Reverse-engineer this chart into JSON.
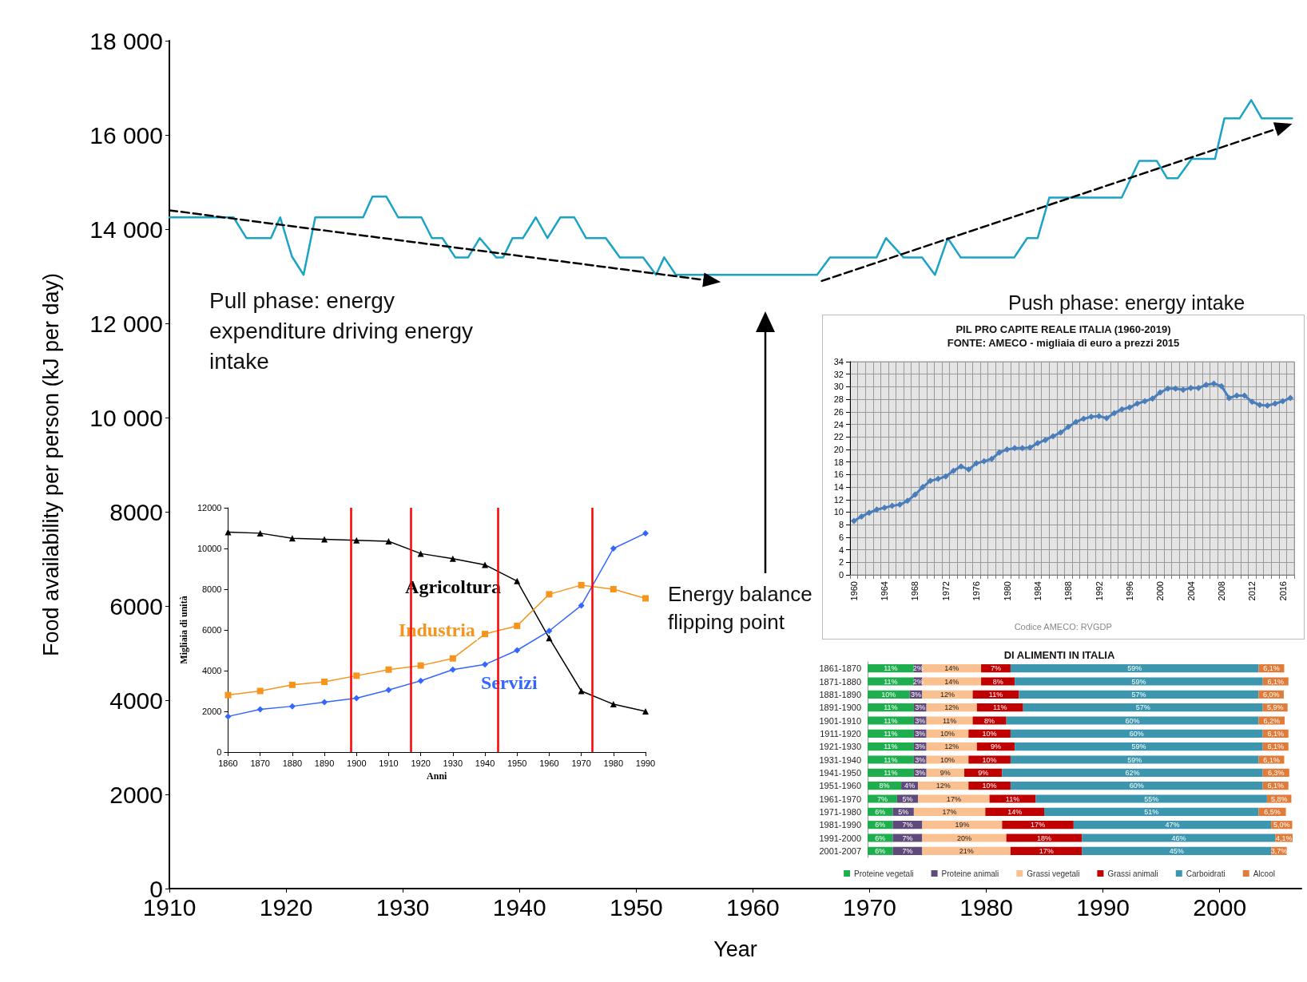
{
  "chart_data": [
    {
      "type": "line",
      "xlabel": "Year",
      "ylabel": "Food availability per person (kJ per day)",
      "x": [
        1910,
        1915.5,
        1916.6,
        1918.7,
        1919.5,
        1920.5,
        1921.5,
        1922.5,
        1926.6,
        1927.4,
        1928.6,
        1929.6,
        1931.6,
        1932.5,
        1933.4,
        1934.5,
        1935.6,
        1936.6,
        1938,
        1938.6,
        1939.4,
        1940.3,
        1941.4,
        1942.4,
        1943.5,
        1944.7,
        1945.7,
        1947.4,
        1948.6,
        1950.6,
        1951.7,
        1952.4,
        1953.4,
        1965.5,
        1966.6,
        1970.6,
        1971.4,
        1972.9,
        1974.5,
        1975.6,
        1976.7,
        1977.8,
        1982.4,
        1983.5,
        1984.4,
        1985.4,
        1991.6,
        1993.1,
        1994.6,
        1995.5,
        1996.4,
        1997.6,
        1999.6,
        2000.4,
        2001.7,
        2002.7,
        2003.6,
        2006.2
      ],
      "xlim": [
        1910,
        2007
      ],
      "xticks": [
        1910,
        1920,
        1930,
        1940,
        1950,
        1960,
        1970,
        1980,
        1990,
        2000
      ],
      "ylim": [
        0,
        18000
      ],
      "yticks": [
        0,
        2000,
        4000,
        6000,
        8000,
        {
          "value": 10000,
          "label": "10 000"
        },
        {
          "value": 12000,
          "label": "12 000"
        },
        {
          "value": 14000,
          "label": "14 000"
        },
        {
          "value": 16000,
          "label": "16 000"
        },
        {
          "value": 18000,
          "label": "18 000"
        }
      ],
      "series": [
        {
          "color": "#1ba3c6",
          "values": [
            14250,
            14250,
            13810,
            13810,
            14250,
            13420,
            13030,
            14250,
            14250,
            14690,
            14690,
            14250,
            14250,
            13810,
            13810,
            13400,
            13400,
            13810,
            13400,
            13400,
            13810,
            13810,
            14250,
            13810,
            14250,
            14250,
            13810,
            13810,
            13400,
            13400,
            13030,
            13400,
            13030,
            13030,
            13400,
            13400,
            13810,
            13400,
            13400,
            13030,
            13810,
            13400,
            13400,
            13810,
            13810,
            14670,
            14670,
            15450,
            15450,
            15080,
            15080,
            15490,
            15490,
            16350,
            16350,
            16740,
            16350,
            16350
          ]
        },
        {
          "type": "line",
          "x": [
            1910,
            1956.5
          ],
          "values": [
            14400,
            12900
          ],
          "color": "#000000",
          "line_style": "dashed"
        },
        {
          "type": "line",
          "x": [
            1965.9,
            2005.5
          ],
          "values": [
            12900,
            16180
          ],
          "color": "#000000",
          "line_style": "dashed"
        }
      ],
      "annotations": [
        "Pull phase: energy expenditure driving energy intake",
        "Push phase: energy intake",
        "Energy balance flipping point"
      ],
      "grid": false,
      "legend": false
    },
    {
      "type": "line",
      "xlabel": "Anni",
      "ylabel": "Migliaia di unità",
      "x": [
        1860,
        1870,
        1880,
        1890,
        1900,
        1910,
        1920,
        1930,
        1940,
        1950,
        1960,
        1970,
        1980,
        1990
      ],
      "xlim": [
        1860,
        1990
      ],
      "xticks": [
        1860,
        1870,
        1880,
        1890,
        1900,
        1910,
        1920,
        1930,
        1940,
        1950,
        1960,
        1970,
        1980,
        1990
      ],
      "ylim": [
        0,
        12000
      ],
      "yticks": [
        0,
        2000,
        4000,
        6000,
        8000,
        10000,
        12000
      ],
      "series": [
        {
          "name": "Agricoltura",
          "color": "#000000",
          "marker": "triangle",
          "values": [
            10800,
            10750,
            10500,
            10450,
            10400,
            10350,
            9750,
            9500,
            9200,
            8400,
            5600,
            3000,
            2350,
            2000
          ]
        },
        {
          "name": "Industria",
          "color": "#f7941d",
          "marker": "square",
          "values": [
            2800,
            3000,
            3300,
            3450,
            3750,
            4050,
            4250,
            4600,
            5800,
            6200,
            7750,
            8200,
            8000,
            7550
          ]
        },
        {
          "name": "Servizi",
          "color": "#3366ff",
          "marker": "diamond",
          "values": [
            1750,
            2100,
            2250,
            2450,
            2650,
            3050,
            3500,
            4050,
            4300,
            5000,
            5950,
            7200,
            10000,
            10750
          ]
        }
      ],
      "ref_lines": [
        {
          "axis": "x",
          "value": 1898.2,
          "color": "#ff0000"
        },
        {
          "axis": "x",
          "value": 1916.8,
          "color": "#ff0000"
        },
        {
          "axis": "x",
          "value": 1944,
          "color": "#ff0000"
        },
        {
          "axis": "x",
          "value": 1973.3,
          "color": "#ff0000"
        }
      ],
      "grid": false,
      "legend": false
    },
    {
      "type": "line",
      "title": "PIL PRO CAPITE REALE ITALIA (1960-2019)",
      "subtitle": "FONTE: AMECO - migliaia di euro a prezzi 2015",
      "categories": [
        "1960",
        null,
        null,
        null,
        "1964",
        null,
        null,
        null,
        "1968",
        null,
        null,
        null,
        "1972",
        null,
        null,
        null,
        "1976",
        null,
        null,
        null,
        "1980",
        null,
        null,
        null,
        "1984",
        null,
        null,
        null,
        "1988",
        null,
        null,
        null,
        "1992",
        null,
        null,
        null,
        "1996",
        null,
        null,
        null,
        "2000",
        null,
        null,
        null,
        "2004",
        null,
        null,
        null,
        "2008",
        null,
        null,
        null,
        "2012",
        null,
        null,
        null,
        "2016",
        null
      ],
      "ylim": [
        0,
        34
      ],
      "yticks": [
        0,
        2,
        4,
        6,
        8,
        10,
        12,
        14,
        16,
        18,
        20,
        22,
        24,
        26,
        28,
        30,
        32,
        34
      ],
      "series": [
        {
          "color": "#4a7ebb",
          "values": [
            8.6,
            9.3,
            9.9,
            10.4,
            10.7,
            11.0,
            11.2,
            11.8,
            12.8,
            14.0,
            15.0,
            15.3,
            15.7,
            16.6,
            17.3,
            16.8,
            17.8,
            18.1,
            18.5,
            19.5,
            20.0,
            20.2,
            20.2,
            20.3,
            21.0,
            21.5,
            22.1,
            22.7,
            23.6,
            24.4,
            24.9,
            25.2,
            25.3,
            25.0,
            25.8,
            26.4,
            26.7,
            27.3,
            27.7,
            28.1,
            29.1,
            29.7,
            29.7,
            29.5,
            29.8,
            29.8,
            30.3,
            30.5,
            30.1,
            28.2,
            28.6,
            28.6,
            27.6,
            27.1,
            27.0,
            27.3,
            27.7,
            28.2
          ]
        }
      ],
      "marker": "diamond",
      "grid": true,
      "legend": false,
      "annotations": [
        "Codice AMECO: RVGDP"
      ]
    },
    {
      "type": "bar",
      "title": "DI ALIMENTI IN ITALIA",
      "orientation": "horizontal",
      "stacked": true,
      "legend": "bottom",
      "categories": [
        "1861-1870",
        "1871-1880",
        "1881-1890",
        "1891-1900",
        "1901-1910",
        "1911-1920",
        "1921-1930",
        "1931-1940",
        "1941-1950",
        "1951-1960",
        "1961-1970",
        "1971-1980",
        "1981-1990",
        "1991-2000",
        "2001-2007"
      ],
      "series": [
        {
          "name": "Proteine vegetali",
          "color": "#1fae4e",
          "values": [
            11,
            11,
            10,
            11,
            11,
            11,
            11,
            11,
            11,
            8,
            7,
            6,
            6,
            6,
            6
          ],
          "value_labels": [
            "11%",
            "11%",
            "10%",
            "11%",
            "11%",
            "11%",
            "11%",
            "11%",
            "11%",
            "8%",
            "7%",
            "6%",
            "6%",
            "6%",
            "6%"
          ]
        },
        {
          "name": "Proteine animali",
          "color": "#604a7b",
          "values": [
            2,
            2,
            3,
            3,
            3,
            3,
            3,
            3,
            3,
            4,
            5,
            5,
            7,
            7,
            7
          ],
          "value_labels": [
            "2%",
            "2%",
            "3%",
            "3%",
            "3%",
            "3%",
            "3%",
            "3%",
            "3%",
            "4%",
            "5%",
            "5%",
            "7%",
            "7%",
            "7%"
          ]
        },
        {
          "name": "Grassi vegetali",
          "color": "#fac090",
          "values": [
            14,
            14,
            12,
            12,
            11,
            10,
            12,
            10,
            9,
            12,
            17,
            17,
            19,
            20,
            21
          ],
          "value_labels": [
            "14%",
            "14%",
            "12%",
            "12%",
            "11%",
            "10%",
            "12%",
            "10%",
            "9%",
            "12%",
            "17%",
            "17%",
            "19%",
            "20%",
            "21%"
          ]
        },
        {
          "name": "Grassi animali",
          "color": "#c00000",
          "values": [
            7,
            8,
            11,
            11,
            8,
            10,
            9,
            10,
            9,
            10,
            11,
            14,
            17,
            18,
            17
          ],
          "value_labels": [
            "7%",
            "8%",
            "11%",
            "11%",
            "8%",
            "10%",
            "9%",
            "10%",
            "9%",
            "10%",
            "11%",
            "14%",
            "17%",
            "18%",
            "17%"
          ]
        },
        {
          "name": "Carboidrati",
          "color": "#3c96ae",
          "values": [
            59,
            59,
            57,
            57,
            60,
            60,
            59,
            59,
            62,
            60,
            55,
            51,
            47,
            46,
            45
          ],
          "value_labels": [
            "59%",
            "59%",
            "57%",
            "57%",
            "60%",
            "60%",
            "59%",
            "59%",
            "62%",
            "60%",
            "55%",
            "51%",
            "47%",
            "46%",
            "45%"
          ]
        },
        {
          "name": "Alcool",
          "color": "#e07b39",
          "values": [
            6.1,
            6.1,
            6.0,
            5.9,
            6.2,
            6.1,
            6.1,
            6.1,
            6.3,
            6.1,
            5.8,
            6.5,
            5.0,
            4.1,
            3.7
          ],
          "value_labels": [
            "6,1%",
            "6,1%",
            "6,0%",
            "5,9%",
            "6,2%",
            "6,1%",
            "6,1%",
            "6,1%",
            "6,3%",
            "6,1%",
            "5,8%",
            "6,5%",
            "5,0%",
            "4,1%",
            "3,7%"
          ]
        }
      ]
    }
  ]
}
